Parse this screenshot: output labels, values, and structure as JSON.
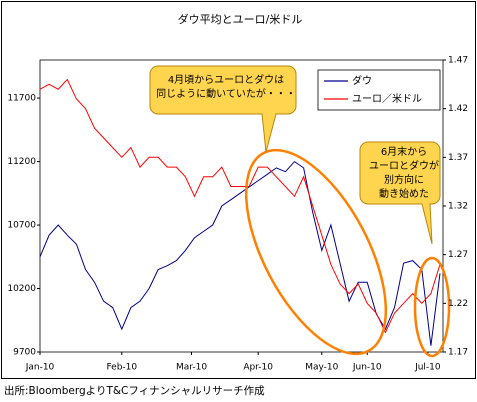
{
  "chart_data": {
    "type": "line",
    "title": "ダウ平均とユーロ/米ドル",
    "x": [
      0,
      3,
      6,
      9,
      12,
      15,
      18,
      21,
      24,
      27,
      30,
      33,
      36,
      39,
      42,
      45,
      48,
      51,
      54,
      57,
      60,
      63,
      66,
      69,
      72,
      75,
      78,
      81,
      84,
      87,
      90,
      93,
      96,
      99,
      102,
      105,
      108,
      111,
      114,
      117,
      120,
      123,
      126,
      129,
      132
    ],
    "xlim": [
      0,
      133
    ],
    "xticks": [
      {
        "value": 0,
        "label": "Jan-10"
      },
      {
        "value": 27,
        "label": "Feb-10"
      },
      {
        "value": 50,
        "label": "Mar-10"
      },
      {
        "value": 72,
        "label": "Apr-10"
      },
      {
        "value": 93,
        "label": "May-10"
      },
      {
        "value": 108,
        "label": "Jun-10"
      },
      {
        "value": 128,
        "label": "Jul-10"
      }
    ],
    "ylim": [
      9700,
      12000
    ],
    "yticks": [
      9700,
      10200,
      10700,
      11200,
      11700
    ],
    "y2lim": [
      1.17,
      1.47
    ],
    "y2ticks": [
      1.17,
      1.22,
      1.27,
      1.32,
      1.37,
      1.42,
      1.47
    ],
    "series": [
      {
        "name": "ダウ",
        "color": "#00008b",
        "values": [
          10450,
          10620,
          10700,
          10620,
          10550,
          10350,
          10250,
          10100,
          10050,
          9880,
          10050,
          10100,
          10200,
          10350,
          10380,
          10420,
          10500,
          10600,
          10650,
          10700,
          10850,
          10900,
          10950,
          11000,
          11050,
          11100,
          11150,
          11120,
          11200,
          11150,
          10800,
          10500,
          10700,
          10400,
          10100,
          10250,
          10250,
          10000,
          9880,
          10050,
          10400,
          10420,
          10350,
          9750,
          10320
        ]
      },
      {
        "name": "ユーロ／米ドル",
        "color": "#ff0000",
        "axis": "y2",
        "values": [
          1.44,
          1.445,
          1.44,
          1.45,
          1.43,
          1.42,
          1.4,
          1.39,
          1.38,
          1.37,
          1.38,
          1.36,
          1.37,
          1.37,
          1.36,
          1.36,
          1.35,
          1.33,
          1.35,
          1.35,
          1.36,
          1.34,
          1.34,
          1.34,
          1.36,
          1.36,
          1.35,
          1.34,
          1.33,
          1.35,
          1.32,
          1.29,
          1.26,
          1.24,
          1.23,
          1.24,
          1.22,
          1.21,
          1.19,
          1.21,
          1.22,
          1.23,
          1.22,
          1.23,
          1.26
        ]
      }
    ],
    "legend": "upper right",
    "annotations": [
      [
        "4月頃からユーロとダウは",
        "同じように動いていたが・・・"
      ],
      [
        "6月末から",
        "ユーロとダウが",
        "別方向に",
        "動き始めた"
      ]
    ],
    "source": "出所:BloombergよりT&Cフィナンシャルリサーチ作成"
  }
}
